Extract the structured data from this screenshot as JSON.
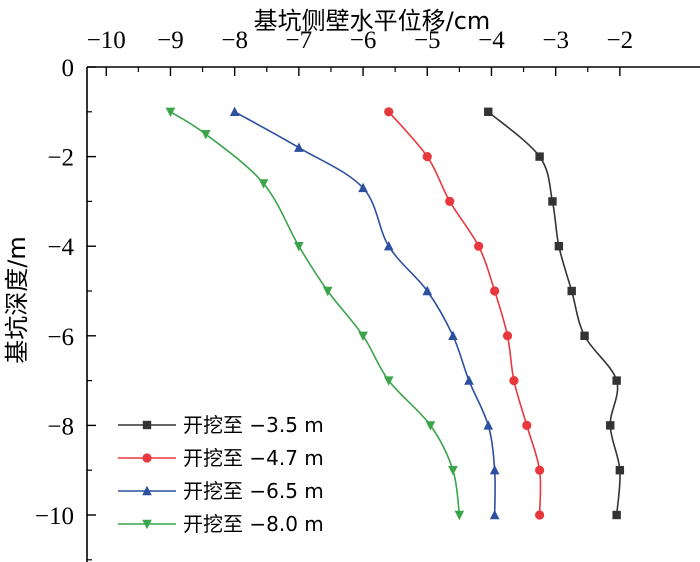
{
  "chart_data": {
    "type": "line",
    "xlabel": "基坑侧壁水平位移/cm",
    "ylabel": "基坑深度/m",
    "xlim": [
      -10.5,
      -1.9
    ],
    "ylim": [
      -11,
      0
    ],
    "x_axis_position": "top",
    "x_ticks": [
      -10,
      -9,
      -8,
      -7,
      -6,
      -5,
      -4,
      -3,
      -2
    ],
    "x_tick_labels": [
      "−10",
      "−9",
      "−8",
      "−7",
      "−6",
      "−5",
      "−4",
      "−3",
      "−2"
    ],
    "y_ticks": [
      0,
      -2,
      -4,
      -6,
      -8,
      -10
    ],
    "y_tick_labels": [
      "0",
      "−2",
      "−4",
      "−6",
      "−8",
      "−10"
    ],
    "grid": false,
    "legend_position": "bottom-left",
    "series": [
      {
        "name": "开挖至 −3.5 m",
        "color": "#333333",
        "marker": "square",
        "x": [
          -4.05,
          -3.25,
          -3.05,
          -2.95,
          -2.75,
          -2.55,
          -2.05,
          -2.15,
          -2.0,
          -2.05
        ],
        "y": [
          -1,
          -2,
          -3,
          -4,
          -5,
          -6,
          -7,
          -8,
          -9,
          -10
        ]
      },
      {
        "name": "开挖至 −4.7 m",
        "color": "#e8383d",
        "marker": "circle",
        "x": [
          -5.6,
          -5.0,
          -4.65,
          -4.2,
          -3.95,
          -3.75,
          -3.65,
          -3.45,
          -3.25,
          -3.25
        ],
        "y": [
          -1,
          -2,
          -3,
          -4,
          -5,
          -6,
          -7,
          -8,
          -9,
          -10
        ]
      },
      {
        "name": "开挖至 −6.5 m",
        "color": "#2c4fa0",
        "marker": "triangle-up",
        "x": [
          -8.0,
          -7.0,
          -6.0,
          -5.6,
          -5.0,
          -4.6,
          -4.35,
          -4.05,
          -3.95,
          -3.95
        ],
        "y": [
          -1,
          -1.8,
          -2.7,
          -4,
          -5,
          -6,
          -7,
          -8,
          -9,
          -10
        ]
      },
      {
        "name": "开挖至 −8.0 m",
        "color": "#3aa54a",
        "marker": "triangle-down",
        "x": [
          -9.0,
          -8.45,
          -7.55,
          -7.0,
          -6.55,
          -6.0,
          -5.6,
          -4.95,
          -4.6,
          -4.5
        ],
        "y": [
          -1,
          -1.5,
          -2.6,
          -4,
          -5,
          -6,
          -7,
          -8,
          -9,
          -10
        ]
      }
    ]
  }
}
